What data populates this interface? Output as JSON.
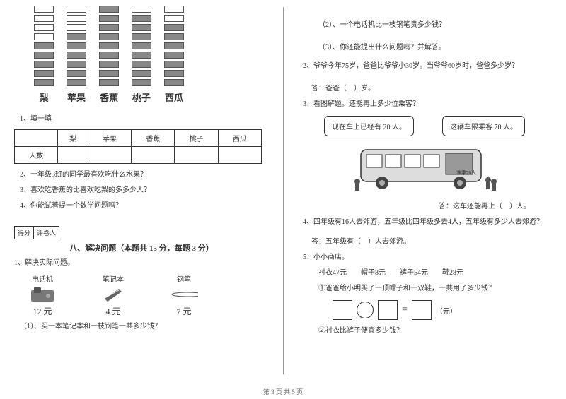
{
  "chart": {
    "fruits": [
      "梨",
      "苹果",
      "香蕉",
      "桃子",
      "西瓜"
    ],
    "total_rows": 9,
    "filled": [
      5,
      6,
      9,
      8,
      7
    ],
    "bar_fill": "#888888",
    "bar_border": "#555555"
  },
  "table": {
    "caption": "1、填一填",
    "row_header": "人数",
    "cols": [
      "梨",
      "苹果",
      "香蕉",
      "桃子",
      "西瓜"
    ]
  },
  "left_questions": {
    "q2": "2、一年级3班的同学最喜欢吃什么水果？",
    "q3": "3、喜欢吃香蕉的比喜欢吃梨的多多少人？",
    "q4": "4、你能试着提一个数学问题吗？"
  },
  "score": {
    "c1": "得分",
    "c2": "评卷人"
  },
  "section8": {
    "title": "八、解决问题（本题共 15 分，每题 3 分）",
    "intro": "1、解决实际问题。",
    "items": [
      {
        "name": "电话机",
        "price": "12 元"
      },
      {
        "name": "笔记本",
        "price": "4 元"
      },
      {
        "name": "钢笔",
        "price": "7 元"
      }
    ],
    "q1_1": "（1）、买一本笔记本和一枝钢笔一共多少钱？"
  },
  "right": {
    "q1_2": "（2）、一个电话机比一枝钢笔贵多少钱？",
    "q1_3": "（3）、你还能提出什么问题吗？并解答。",
    "q2": "2、爷爷今年75岁，爸爸比爷爷小30岁。当爷爷60岁时，爸爸多少岁？",
    "a2": "答：爸爸（　）岁。",
    "q3": "3、看图解题。还能再上多少位乘客？",
    "bubble1": "现在车上已经有 20 人。",
    "bubble2": "这辆车限乘客 70 人。",
    "bus_label": "准乘70人",
    "a3": "答：这车还能再上（　）人。",
    "q4": "4、四年级有16人去郊游，五年级比四年级多去4人，五年级有多少人去郊游？",
    "a4": "答：五年级有（　）人去郊游。",
    "q5": "5、小小商店。",
    "q5_prices": "衬衣47元　　帽子8元　　裤子54元　　鞋28元",
    "q5_1": "①爸爸给小明买了一顶帽子和一双鞋，一共用了多少钱？",
    "eq": "=",
    "unit": "（元）",
    "q5_2": "②衬衣比裤子便宜多少钱？"
  },
  "footer": "第 3 页 共 5 页"
}
